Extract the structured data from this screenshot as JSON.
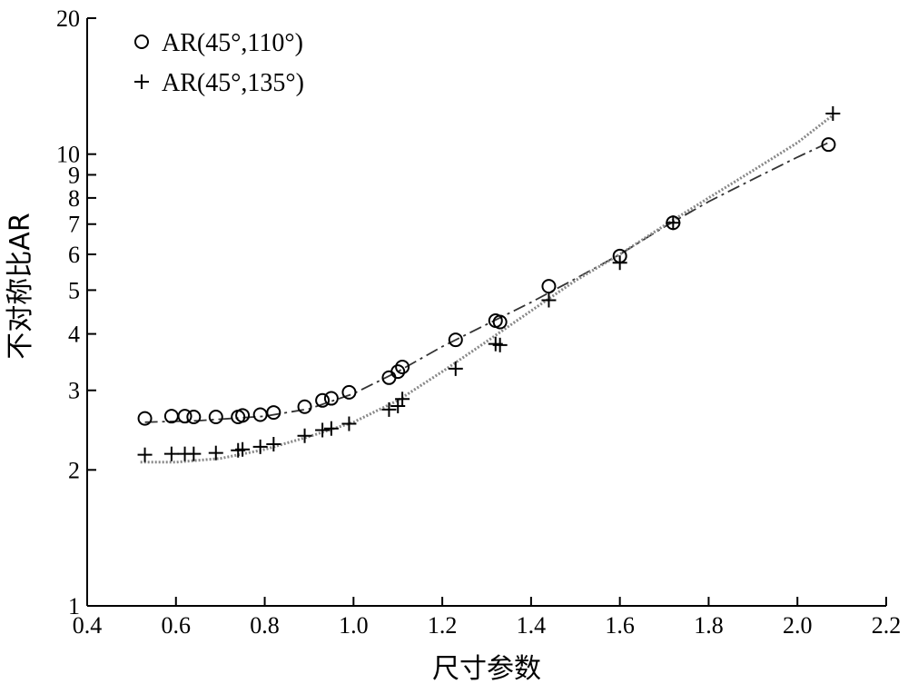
{
  "chart_data": {
    "type": "scatter",
    "xlabel": "尺寸参数",
    "ylabel": "不对称比AR",
    "y_scale": "log",
    "xlim": [
      0.4,
      2.2
    ],
    "ylim": [
      1,
      20
    ],
    "x_ticks": [
      0.4,
      0.6,
      0.8,
      1.0,
      1.2,
      1.4,
      1.6,
      1.8,
      2.0,
      2.2
    ],
    "x_tick_labels": [
      "0.4",
      "0.6",
      "0.8",
      "1.0",
      "1.2",
      "1.4",
      "1.6",
      "1.8",
      "2.0",
      "2.2"
    ],
    "y_ticks": [
      1,
      2,
      3,
      4,
      5,
      6,
      7,
      8,
      9,
      10,
      20
    ],
    "y_tick_labels": [
      "1",
      "2",
      "3",
      "4",
      "5",
      "6",
      "7",
      "8",
      "9",
      "10",
      "20"
    ],
    "grid": false,
    "legend_position": "top-left",
    "series": [
      {
        "name": "AR(45°,110°)",
        "marker": "circle",
        "line_style": "dash-dot",
        "x": [
          0.53,
          0.59,
          0.62,
          0.64,
          0.69,
          0.74,
          0.75,
          0.79,
          0.82,
          0.89,
          0.93,
          0.95,
          0.99,
          1.08,
          1.1,
          1.11,
          1.23,
          1.32,
          1.33,
          1.44,
          1.6,
          1.72,
          2.07
        ],
        "y": [
          2.6,
          2.63,
          2.63,
          2.62,
          2.62,
          2.62,
          2.64,
          2.65,
          2.68,
          2.76,
          2.85,
          2.88,
          2.97,
          3.2,
          3.3,
          3.38,
          3.88,
          4.28,
          4.25,
          5.1,
          5.95,
          7.05,
          10.5
        ],
        "fit_x": [
          0.53,
          0.65,
          0.8,
          0.9,
          1.0,
          1.1,
          1.2,
          1.3,
          1.4,
          1.5,
          1.6,
          1.7,
          1.8,
          1.9,
          2.0,
          2.07
        ],
        "fit_y": [
          2.55,
          2.57,
          2.63,
          2.73,
          2.95,
          3.3,
          3.75,
          4.2,
          4.7,
          5.3,
          6.0,
          6.9,
          7.85,
          8.8,
          9.85,
          10.6
        ]
      },
      {
        "name": "AR(45°,135°)",
        "marker": "plus",
        "line_style": "dotted",
        "x": [
          0.53,
          0.59,
          0.62,
          0.64,
          0.69,
          0.74,
          0.75,
          0.79,
          0.82,
          0.89,
          0.93,
          0.95,
          0.99,
          1.08,
          1.1,
          1.11,
          1.23,
          1.32,
          1.33,
          1.44,
          1.6,
          1.72,
          2.08
        ],
        "y": [
          2.16,
          2.17,
          2.17,
          2.17,
          2.18,
          2.21,
          2.22,
          2.25,
          2.28,
          2.38,
          2.45,
          2.47,
          2.53,
          2.72,
          2.77,
          2.87,
          3.35,
          3.8,
          3.78,
          4.75,
          5.75,
          7.05,
          12.3
        ],
        "fit_x": [
          0.52,
          0.6,
          0.7,
          0.8,
          0.9,
          1.0,
          1.1,
          1.2,
          1.3,
          1.4,
          1.5,
          1.6,
          1.7,
          1.8,
          1.9,
          2.0,
          2.08
        ],
        "fit_y": [
          2.08,
          2.08,
          2.12,
          2.22,
          2.37,
          2.55,
          2.85,
          3.3,
          3.85,
          4.5,
          5.25,
          6.0,
          6.95,
          8.0,
          9.2,
          10.6,
          12.2
        ]
      }
    ]
  }
}
